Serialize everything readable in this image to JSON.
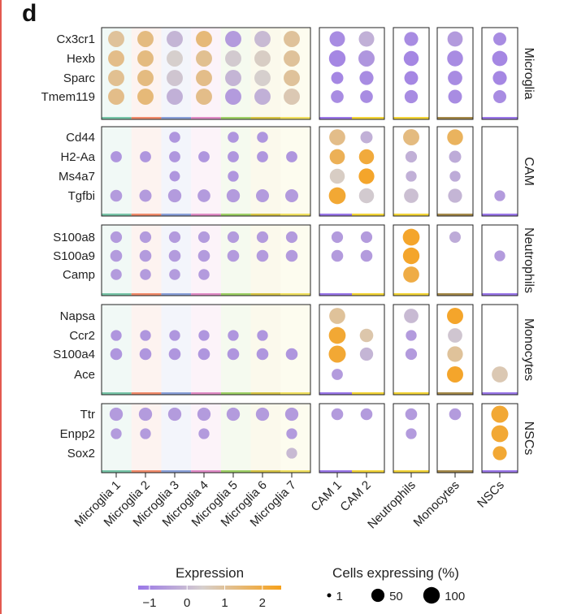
{
  "panel_label": "d",
  "colors": {
    "low": "#9a77e8",
    "mid": "#d6cfcd",
    "high": "#f7a11a"
  },
  "chart_data": {
    "type": "dotplot",
    "x_blocks": [
      [
        "Microglia 1",
        "Microglia 2",
        "Microglia 3",
        "Microglia 4",
        "Microglia 5",
        "Microglia 6",
        "Microglia 7"
      ],
      [
        "CAM 1",
        "CAM 2"
      ],
      [
        "Neutrophils"
      ],
      [
        "Monocytes"
      ],
      [
        "NSCs"
      ]
    ],
    "gene_groups": [
      {
        "name": "Microglia",
        "genes": [
          "Cx3cr1",
          "Hexb",
          "Sparc",
          "Tmem119"
        ]
      },
      {
        "name": "CAM",
        "genes": [
          "Cd44",
          "H2-Aa",
          "Ms4a7",
          "Tgfbi"
        ]
      },
      {
        "name": "Neutrophils",
        "genes": [
          "S100a8",
          "S100a9",
          "Camp"
        ]
      },
      {
        "name": "Monocytes",
        "genes": [
          "Napsa",
          "Ccr2",
          "S100a4",
          "Ace"
        ]
      },
      {
        "name": "NSCs",
        "genes": [
          "Ttr",
          "Enpp2",
          "Sox2"
        ]
      }
    ],
    "cluster_colors": [
      "#78c5a8",
      "#f08b6b",
      "#8aa0d8",
      "#e08cc6",
      "#9fd066",
      "#d7c445",
      "#f0e060",
      "#9a77e8",
      "#f2d438",
      "#f2d438",
      "#a58a4a",
      "#9a77e8"
    ],
    "expression": [
      [
        1.0,
        1.3,
        -0.1,
        1.4,
        -0.6,
        0.0,
        1.0,
        -0.9,
        -0.2,
        -0.9,
        -0.6,
        -0.9
      ],
      [
        1.2,
        1.3,
        0.4,
        1.1,
        0.3,
        0.5,
        1.0,
        -1.0,
        -0.7,
        -1.0,
        -0.9,
        -1.0
      ],
      [
        1.1,
        1.3,
        0.2,
        1.2,
        -0.1,
        0.4,
        1.0,
        -1.0,
        -0.9,
        -1.0,
        -0.9,
        -1.0
      ],
      [
        1.2,
        1.4,
        -0.2,
        1.2,
        -0.6,
        -0.2,
        0.7,
        -0.9,
        -0.9,
        -0.9,
        -0.9,
        -0.9
      ],
      [
        null,
        null,
        -0.7,
        null,
        -0.7,
        -0.7,
        null,
        1.2,
        -0.2,
        1.3,
        1.7,
        null
      ],
      [
        -0.7,
        -0.7,
        -0.7,
        -0.7,
        -0.7,
        -0.7,
        -0.7,
        1.8,
        2.1,
        -0.2,
        -0.3,
        null
      ],
      [
        null,
        null,
        -0.7,
        null,
        -0.7,
        null,
        null,
        0.5,
        2.3,
        -0.2,
        -0.3,
        null
      ],
      [
        -0.6,
        -0.6,
        -0.6,
        -0.6,
        -0.6,
        -0.6,
        -0.6,
        2.2,
        0.3,
        0.1,
        -0.1,
        -0.6
      ],
      [
        -0.6,
        -0.6,
        -0.6,
        -0.6,
        -0.6,
        -0.6,
        -0.6,
        -0.6,
        -0.6,
        2.3,
        -0.3,
        null
      ],
      [
        -0.6,
        -0.6,
        -0.6,
        -0.6,
        -0.6,
        -0.6,
        -0.6,
        -0.6,
        -0.6,
        2.3,
        null,
        -0.6
      ],
      [
        -0.6,
        -0.6,
        -0.6,
        -0.6,
        null,
        null,
        null,
        null,
        null,
        2.0,
        null,
        null
      ],
      [
        null,
        null,
        null,
        null,
        null,
        null,
        null,
        1.0,
        null,
        0.0,
        2.3,
        null
      ],
      [
        -0.7,
        -0.7,
        -0.7,
        -0.7,
        -0.7,
        -0.7,
        null,
        2.2,
        0.8,
        -0.6,
        0.2,
        null
      ],
      [
        -0.7,
        -0.7,
        -0.7,
        -0.7,
        -0.7,
        -0.7,
        -0.7,
        2.2,
        -0.1,
        -0.6,
        1.0,
        null
      ],
      [
        null,
        null,
        null,
        null,
        null,
        null,
        null,
        -0.6,
        null,
        null,
        2.3,
        0.7
      ],
      [
        -0.6,
        -0.6,
        -0.6,
        -0.6,
        -0.6,
        -0.6,
        -0.6,
        -0.6,
        -0.6,
        -0.6,
        -0.6,
        2.2
      ],
      [
        -0.6,
        -0.6,
        null,
        -0.6,
        null,
        null,
        -0.6,
        null,
        null,
        -0.6,
        null,
        2.2
      ],
      [
        null,
        null,
        null,
        null,
        null,
        null,
        0.0,
        null,
        null,
        null,
        null,
        2.2
      ]
    ],
    "pct_expressing": [
      [
        58,
        58,
        58,
        58,
        58,
        58,
        58,
        50,
        50,
        36,
        48,
        28
      ],
      [
        58,
        58,
        58,
        58,
        58,
        58,
        58,
        62,
        58,
        45,
        54,
        48
      ],
      [
        58,
        58,
        58,
        58,
        58,
        58,
        58,
        22,
        36,
        34,
        40,
        36
      ],
      [
        58,
        58,
        58,
        58,
        58,
        58,
        58,
        26,
        26,
        30,
        34,
        28
      ],
      [
        null,
        null,
        15,
        null,
        15,
        15,
        null,
        56,
        22,
        58,
        54,
        null
      ],
      [
        16,
        16,
        16,
        16,
        16,
        16,
        16,
        48,
        46,
        18,
        22,
        null
      ],
      [
        null,
        null,
        12,
        null,
        14,
        null,
        null,
        46,
        52,
        14,
        14,
        null
      ],
      [
        20,
        22,
        30,
        26,
        30,
        28,
        28,
        65,
        46,
        40,
        36,
        14
      ],
      [
        18,
        18,
        18,
        18,
        18,
        18,
        18,
        18,
        18,
        65,
        17,
        null
      ],
      [
        20,
        20,
        20,
        20,
        20,
        20,
        20,
        20,
        20,
        62,
        17,
        14
      ],
      [
        15,
        15,
        15,
        15,
        null,
        null,
        null,
        null,
        null,
        56,
        null,
        null
      ],
      [
        null,
        null,
        null,
        null,
        null,
        null,
        null,
        56,
        null,
        40,
        58,
        null
      ],
      [
        14,
        14,
        14,
        14,
        14,
        14,
        null,
        65,
        32,
        14,
        40,
        null
      ],
      [
        20,
        20,
        20,
        20,
        20,
        20,
        20,
        68,
        30,
        18,
        52,
        null
      ],
      [
        null,
        null,
        null,
        null,
        null,
        null,
        null,
        16,
        null,
        null,
        58,
        56
      ],
      [
        30,
        30,
        30,
        30,
        30,
        30,
        30,
        20,
        20,
        20,
        20,
        68
      ],
      [
        14,
        14,
        null,
        14,
        null,
        null,
        14,
        null,
        null,
        14,
        null,
        66
      ],
      [
        null,
        null,
        null,
        null,
        null,
        null,
        14,
        null,
        null,
        null,
        null,
        36
      ]
    ],
    "color_legend": {
      "title": "Expression",
      "ticks": [
        "−1",
        "0",
        "1",
        "2"
      ],
      "range": [
        -1.3,
        2.5
      ]
    },
    "size_legend": {
      "title": "Cells expressing (%)",
      "values": [
        1,
        50,
        100
      ],
      "labels": [
        "1",
        "50",
        "100"
      ]
    }
  }
}
